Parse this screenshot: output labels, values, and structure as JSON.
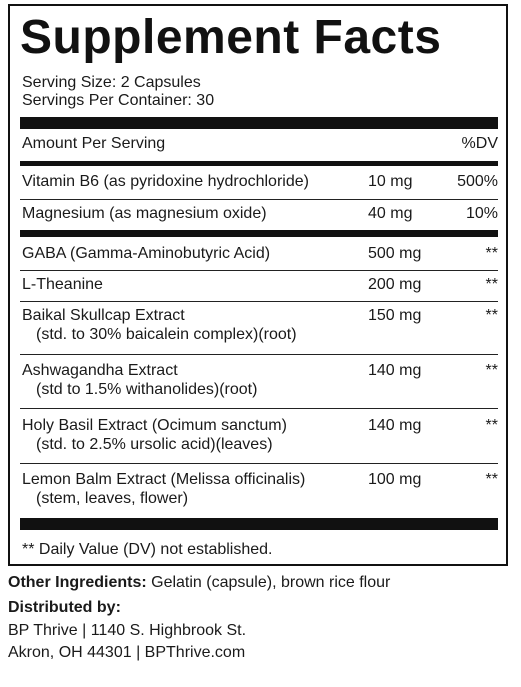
{
  "title": "Supplement Facts",
  "serving_size": "Serving Size: 2 Capsules",
  "servings_per_container": "Servings Per Container: 30",
  "header": {
    "amount_label": "Amount Per Serving",
    "dv_label": "%DV"
  },
  "vitamins": [
    {
      "name": "Vitamin B6 (as pyridoxine hydrochloride)",
      "amount": "10 mg",
      "dv": "500%"
    },
    {
      "name": "Magnesium (as magnesium oxide)",
      "amount": "40 mg",
      "dv": "10%"
    }
  ],
  "ingredients": [
    {
      "name": "GABA (Gamma-Aminobutyric Acid)",
      "sub": "",
      "amount": "500 mg",
      "dv": "**"
    },
    {
      "name": "L-Theanine",
      "sub": "",
      "amount": "200 mg",
      "dv": "**"
    },
    {
      "name": "Baikal Skullcap Extract",
      "sub": "(std. to 30% baicalein complex)(root)",
      "amount": "150 mg",
      "dv": "**"
    },
    {
      "name": "Ashwagandha Extract",
      "sub": "(std to 1.5% withanolides)(root)",
      "amount": "140 mg",
      "dv": "**"
    },
    {
      "name": "Holy Basil Extract (Ocimum sanctum)",
      "sub": "(std. to 2.5% ursolic acid)(leaves)",
      "amount": "140 mg",
      "dv": "**"
    },
    {
      "name": "Lemon Balm Extract (Melissa officinalis)",
      "sub": "(stem, leaves, flower)",
      "amount": "100 mg",
      "dv": "**"
    }
  ],
  "footnote": "** Daily Value (DV) not established.",
  "other_ingredients": {
    "label": "Other Ingredients:",
    "text": " Gelatin (capsule), brown rice flour"
  },
  "distributor": {
    "label": "Distributed by:",
    "line1": "BP Thrive | 1140 S. Highbrook St.",
    "line2": "Akron, OH 44301 | BPThrive.com"
  }
}
